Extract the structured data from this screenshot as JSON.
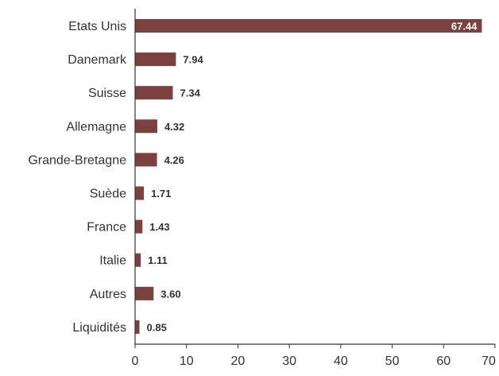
{
  "chart_data": {
    "type": "bar",
    "orientation": "horizontal",
    "categories": [
      "Etats Unis",
      "Danemark",
      "Suisse",
      "Allemagne",
      "Grande-Bretagne",
      "Suède",
      "France",
      "Italie",
      "Autres",
      "Liquidités"
    ],
    "values": [
      67.44,
      7.94,
      7.34,
      4.32,
      4.26,
      1.71,
      1.43,
      1.11,
      3.6,
      0.85
    ],
    "value_labels": [
      "67.44",
      "7.94",
      "7.34",
      "4.32",
      "4.26",
      "1.71",
      "1.43",
      "1.11",
      "3.60",
      "0.85"
    ],
    "xlim": [
      0,
      70
    ],
    "xticks": [
      0,
      10,
      20,
      30,
      40,
      50,
      60,
      70
    ],
    "title": "",
    "xlabel": "",
    "ylabel": "",
    "grid": false,
    "legend": "none",
    "colors": {
      "bar": "#7b4040",
      "axis": "#333333",
      "text": "#333333",
      "inside_label": "#ffffff"
    }
  }
}
